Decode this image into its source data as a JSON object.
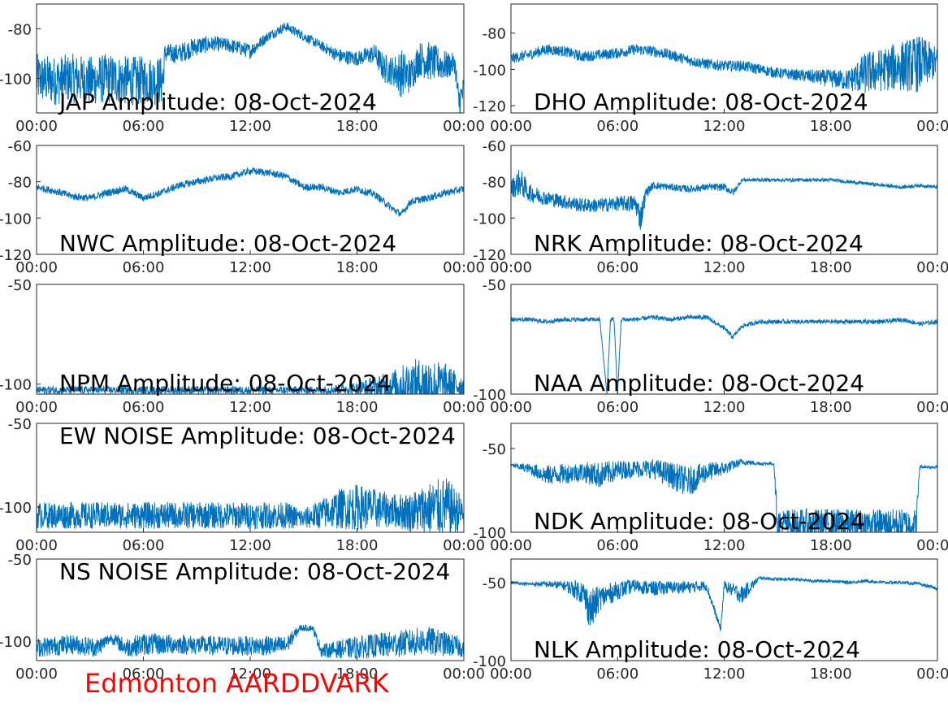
{
  "footer": {
    "text": "Edmonton AARDDVARK",
    "color": "#ff0000"
  },
  "line_color": "#0072bd",
  "chart_data": [
    {
      "type": "line",
      "title": "JAP Amplitude: 08-Oct-2024",
      "xticks": [
        "00:00",
        "06:00",
        "12:00",
        "18:00",
        "00:00"
      ],
      "yticks": [
        "-80",
        "-100"
      ],
      "xlim": [
        0,
        24
      ],
      "ylim": [
        -114,
        -70
      ],
      "series": [
        {
          "x": [
            0,
            1,
            2,
            3,
            4,
            5,
            6,
            7.1,
            7.2,
            8,
            9,
            10,
            11,
            12,
            13,
            14,
            15,
            16,
            17,
            18,
            19,
            19.5,
            20,
            20.5,
            21,
            21.5,
            22,
            23,
            23.5,
            23.7,
            24
          ],
          "y": [
            -100,
            -101,
            -100,
            -101,
            -100,
            -101,
            -101,
            -101,
            -90,
            -90,
            -87,
            -86,
            -87,
            -89,
            -83,
            -79,
            -83,
            -87,
            -91,
            -92,
            -90,
            -96,
            -97,
            -98,
            -99,
            -92,
            -93,
            -95,
            -94,
            -110,
            -105
          ],
          "noise": [
            10,
            10,
            10,
            10,
            10,
            10,
            10,
            10,
            4,
            4,
            4,
            3,
            3,
            3,
            2,
            2,
            2,
            2,
            3,
            3,
            4,
            6,
            6,
            10,
            7,
            7,
            8,
            6,
            4,
            8,
            6
          ]
        }
      ]
    },
    {
      "type": "line",
      "title": "DHO Amplitude: 08-Oct-2024",
      "xticks": [
        "00:00",
        "06:00",
        "12:00",
        "18:00",
        "00:00"
      ],
      "yticks": [
        "-80",
        "-100",
        "-120"
      ],
      "xlim": [
        0,
        24
      ],
      "ylim": [
        -124,
        -64
      ],
      "series": [
        {
          "x": [
            0,
            1,
            2,
            3,
            4,
            5,
            6,
            7,
            8,
            9,
            10,
            11,
            12,
            13,
            14,
            15,
            16,
            17,
            18,
            19,
            20,
            21,
            22,
            23,
            24
          ],
          "y": [
            -94,
            -92,
            -89,
            -90,
            -93,
            -92,
            -91,
            -89,
            -90,
            -92,
            -95,
            -97,
            -98,
            -98,
            -100,
            -102,
            -103,
            -104,
            -105,
            -106,
            -102,
            -100,
            -98,
            -97,
            -96
          ],
          "noise": [
            3,
            3,
            3,
            3,
            3,
            3,
            3,
            3,
            3,
            3,
            3,
            3,
            3,
            3,
            3,
            3,
            3,
            4,
            5,
            6,
            12,
            12,
            14,
            16,
            8
          ]
        }
      ]
    },
    {
      "type": "line",
      "title": "NWC Amplitude: 08-Oct-2024",
      "xticks": [
        "00:00",
        "06:00",
        "12:00",
        "18:00",
        "00:00"
      ],
      "yticks": [
        "-60",
        "-80",
        "-100",
        "-120"
      ],
      "xlim": [
        0,
        24
      ],
      "ylim": [
        -120,
        -60
      ],
      "series": [
        {
          "x": [
            0,
            1,
            2,
            3,
            4,
            5,
            6,
            7,
            8,
            9,
            10,
            11,
            12,
            13,
            14,
            15,
            16,
            17,
            18,
            19,
            20,
            20.5,
            21,
            22,
            23,
            24
          ],
          "y": [
            -83,
            -85,
            -88,
            -89,
            -86,
            -84,
            -89,
            -86,
            -82,
            -80,
            -78,
            -77,
            -74,
            -75,
            -77,
            -83,
            -83,
            -86,
            -84,
            -87,
            -95,
            -98,
            -91,
            -89,
            -86,
            -84
          ],
          "noise": [
            2,
            2,
            2,
            2,
            2,
            2,
            2,
            2,
            2,
            2,
            2,
            2,
            2,
            2,
            2,
            2,
            2,
            2,
            2,
            2,
            2,
            2,
            2,
            2,
            2,
            2
          ]
        }
      ]
    },
    {
      "type": "line",
      "title": "NRK Amplitude: 08-Oct-2024",
      "xticks": [
        "00:00",
        "06:00",
        "12:00",
        "18:00",
        "00:00"
      ],
      "yticks": [
        "-60",
        "-80",
        "-100",
        "-120"
      ],
      "xlim": [
        0,
        24
      ],
      "ylim": [
        -120,
        -60
      ],
      "series": [
        {
          "x": [
            0,
            0.5,
            1,
            2,
            3,
            4,
            5,
            6,
            7,
            7.3,
            7.6,
            8,
            9,
            10,
            11,
            12,
            12.5,
            13,
            14,
            15,
            16,
            17,
            18,
            19,
            20,
            21,
            22,
            23,
            24
          ],
          "y": [
            -84,
            -80,
            -86,
            -89,
            -91,
            -93,
            -93,
            -92,
            -92,
            -100,
            -86,
            -82,
            -83,
            -84,
            -83,
            -83,
            -86,
            -79,
            -79,
            -79,
            -79,
            -79,
            -79,
            -80,
            -81,
            -82,
            -83,
            -82,
            -83
          ],
          "noise": [
            5,
            8,
            5,
            4,
            4,
            4,
            4,
            4,
            5,
            8,
            3,
            2,
            2,
            2,
            2,
            2,
            2,
            1,
            1,
            1,
            1,
            1,
            1,
            1,
            1,
            1,
            1,
            1,
            1
          ]
        }
      ]
    },
    {
      "type": "line",
      "title": "NPM Amplitude: 08-Oct-2024",
      "xticks": [
        "00:00",
        "06:00",
        "12:00",
        "18:00",
        "00:00"
      ],
      "yticks": [
        "-50",
        "-100"
      ],
      "xlim": [
        0,
        24
      ],
      "ylim": [
        -105,
        -50
      ],
      "series": [
        {
          "x": [
            0,
            2,
            4,
            6,
            8,
            10,
            12,
            14,
            16,
            18,
            19,
            20,
            21,
            22,
            23,
            24
          ],
          "y": [
            -103,
            -103,
            -103,
            -103,
            -103,
            -103,
            -103,
            -103,
            -103,
            -102,
            -102,
            -101,
            -100,
            -100,
            -100,
            -101
          ],
          "noise": [
            2,
            2,
            2,
            2,
            2,
            2,
            2,
            2,
            2,
            3,
            6,
            8,
            12,
            14,
            10,
            5
          ]
        }
      ]
    },
    {
      "type": "line",
      "title": "NAA Amplitude: 08-Oct-2024",
      "xticks": [
        "00:00",
        "06:00",
        "12:00",
        "18:00",
        "00:00"
      ],
      "yticks": [
        "-50",
        "-100"
      ],
      "xlim": [
        0,
        24
      ],
      "ylim": [
        -100,
        -50
      ],
      "series": [
        {
          "x": [
            0,
            1,
            2,
            3,
            4,
            5,
            5.4,
            5.6,
            5.8,
            6,
            6.2,
            7,
            8,
            9,
            10,
            11,
            12,
            12.5,
            13,
            14,
            15,
            16,
            17,
            18,
            19,
            20,
            21,
            22,
            23,
            24
          ],
          "y": [
            -66,
            -66,
            -67,
            -66,
            -66,
            -66,
            -100,
            -66,
            -66,
            -100,
            -66,
            -66,
            -65,
            -66,
            -65,
            -65,
            -70,
            -74,
            -69,
            -67,
            -67,
            -67,
            -67,
            -67,
            -67,
            -67,
            -67,
            -66,
            -68,
            -67
          ],
          "noise": [
            1,
            1,
            1,
            1,
            1,
            1,
            0,
            1,
            1,
            0,
            1,
            1,
            1,
            1,
            1,
            1,
            1,
            1,
            1,
            1,
            1,
            1,
            1,
            1,
            1,
            1,
            1,
            1,
            1,
            1
          ]
        }
      ]
    },
    {
      "type": "line",
      "title": "EW NOISE Amplitude: 08-Oct-2024",
      "xticks": [
        "00:00",
        "06:00",
        "12:00",
        "18:00",
        "00:00"
      ],
      "yticks": [
        "-50",
        "-100"
      ],
      "xlim": [
        0,
        24
      ],
      "ylim": [
        -115,
        -50
      ],
      "series": [
        {
          "x": [
            0,
            2,
            4,
            6,
            8,
            10,
            12,
            14,
            15,
            16,
            17,
            18,
            19,
            20,
            21,
            22,
            23,
            24
          ],
          "y": [
            -105,
            -105,
            -105,
            -105,
            -105,
            -105,
            -105,
            -105,
            -107,
            -104,
            -101,
            -100,
            -101,
            -102,
            -103,
            -101,
            -100,
            -104
          ],
          "noise": [
            8,
            8,
            8,
            8,
            8,
            8,
            8,
            8,
            6,
            9,
            12,
            14,
            12,
            10,
            12,
            16,
            18,
            10
          ]
        }
      ]
    },
    {
      "type": "line",
      "title": "NDK Amplitude: 08-Oct-2024",
      "xticks": [
        "00:00",
        "06:00",
        "12:00",
        "18:00",
        "00:00"
      ],
      "yticks": [
        "-50",
        "-100"
      ],
      "xlim": [
        0,
        24
      ],
      "ylim": [
        -100,
        -35
      ],
      "series": [
        {
          "x": [
            0,
            1,
            2,
            3,
            4,
            5,
            6,
            7,
            8,
            9,
            10,
            11,
            12,
            13,
            14,
            14.8,
            15,
            16,
            17,
            18,
            19,
            20,
            21,
            22,
            22.8,
            23,
            24
          ],
          "y": [
            -60,
            -62,
            -66,
            -65,
            -64,
            -66,
            -63,
            -62,
            -62,
            -66,
            -70,
            -64,
            -62,
            -58,
            -59,
            -59,
            -95,
            -95,
            -95,
            -95,
            -95,
            -95,
            -95,
            -95,
            -95,
            -61,
            -61
          ],
          "noise": [
            1,
            3,
            6,
            6,
            6,
            8,
            6,
            5,
            6,
            8,
            9,
            6,
            4,
            2,
            1,
            1,
            9,
            9,
            9,
            9,
            9,
            9,
            9,
            9,
            9,
            1,
            1
          ]
        }
      ]
    },
    {
      "type": "line",
      "title": "NS NOISE Amplitude: 08-Oct-2024",
      "xticks": [
        "00:00",
        "06:00",
        "12:00",
        "18:00",
        "00:00"
      ],
      "yticks": [
        "-50",
        "-100"
      ],
      "xlim": [
        0,
        24
      ],
      "ylim": [
        -112,
        -50
      ],
      "series": [
        {
          "x": [
            0,
            2,
            3.4,
            4.2,
            5,
            6,
            8,
            10,
            12,
            14,
            14.8,
            15.5,
            16,
            18,
            20,
            22,
            24
          ],
          "y": [
            -104,
            -102,
            -104,
            -98,
            -104,
            -102,
            -102,
            -103,
            -103,
            -103,
            -92,
            -92,
            -106,
            -104,
            -102,
            -100,
            -104
          ],
          "noise": [
            6,
            6,
            6,
            3,
            6,
            7,
            6,
            6,
            6,
            6,
            2,
            2,
            4,
            7,
            8,
            9,
            6
          ]
        }
      ]
    },
    {
      "type": "line",
      "title": "NLK Amplitude: 08-Oct-2024",
      "xticks": [
        "00:00",
        "06:00",
        "12:00",
        "18:00",
        "00:00"
      ],
      "yticks": [
        "-50",
        "-100"
      ],
      "xlim": [
        0,
        24
      ],
      "ylim": [
        -100,
        -35
      ],
      "series": [
        {
          "x": [
            0,
            1,
            2,
            3,
            4,
            4.5,
            5,
            6,
            7,
            8,
            9,
            10,
            11,
            11.8,
            12,
            13,
            14,
            15,
            16,
            17,
            18,
            19,
            20,
            21,
            22,
            23,
            24
          ],
          "y": [
            -50,
            -51,
            -51,
            -52,
            -56,
            -68,
            -60,
            -55,
            -52,
            -54,
            -53,
            -53,
            -52,
            -80,
            -52,
            -58,
            -47,
            -48,
            -48,
            -49,
            -49,
            -50,
            -49,
            -50,
            -50,
            -51,
            -54
          ],
          "noise": [
            1,
            1,
            2,
            3,
            8,
            14,
            8,
            6,
            4,
            5,
            4,
            4,
            3,
            2,
            3,
            6,
            1,
            1,
            1,
            1,
            1,
            1,
            1,
            1,
            1,
            1,
            1
          ]
        }
      ]
    }
  ]
}
